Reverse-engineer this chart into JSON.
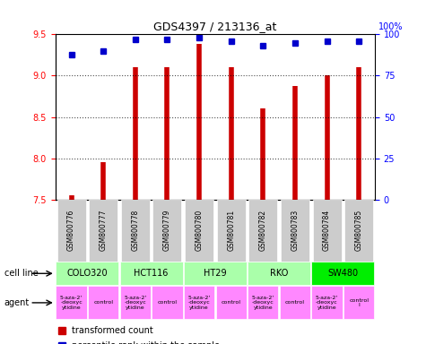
{
  "title": "GDS4397 / 213136_at",
  "samples": [
    "GSM800776",
    "GSM800777",
    "GSM800778",
    "GSM800779",
    "GSM800780",
    "GSM800781",
    "GSM800782",
    "GSM800783",
    "GSM800784",
    "GSM800785"
  ],
  "red_values": [
    7.55,
    7.95,
    9.1,
    9.1,
    9.38,
    9.1,
    8.6,
    8.88,
    9.0,
    9.1
  ],
  "blue_values": [
    88,
    90,
    97,
    97,
    98,
    96,
    93,
    95,
    96,
    96
  ],
  "ylim": [
    7.5,
    9.5
  ],
  "blue_ylim": [
    0,
    100
  ],
  "yticks_red": [
    7.5,
    8.0,
    8.5,
    9.0,
    9.5
  ],
  "yticks_blue": [
    0,
    25,
    50,
    75,
    100
  ],
  "cell_lines": [
    {
      "label": "COLO320",
      "span": [
        0,
        2
      ],
      "color": "#ccffcc"
    },
    {
      "label": "HCT116",
      "span": [
        2,
        4
      ],
      "color": "#ccffcc"
    },
    {
      "label": "HT29",
      "span": [
        4,
        6
      ],
      "color": "#ccffcc"
    },
    {
      "label": "RKO",
      "span": [
        6,
        8
      ],
      "color": "#ccffcc"
    },
    {
      "label": "SW480",
      "span": [
        8,
        10
      ],
      "color": "#00ff00"
    }
  ],
  "agents": [
    {
      "label": "5-aza-2'\n-deoxyc\nytidine",
      "span": [
        0,
        1
      ],
      "color": "#ff88ff"
    },
    {
      "label": "control",
      "span": [
        1,
        2
      ],
      "color": "#ff88ff"
    },
    {
      "label": "5-aza-2'\n-deoxyc\nytidine",
      "span": [
        2,
        3
      ],
      "color": "#ff88ff"
    },
    {
      "label": "control",
      "span": [
        3,
        4
      ],
      "color": "#ff88ff"
    },
    {
      "label": "5-aza-2'\n-deoxyc\nytidine",
      "span": [
        4,
        5
      ],
      "color": "#ff88ff"
    },
    {
      "label": "control",
      "span": [
        5,
        6
      ],
      "color": "#ff88ff"
    },
    {
      "label": "5-aza-2'\n-deoxyc\nytidine",
      "span": [
        6,
        7
      ],
      "color": "#ff88ff"
    },
    {
      "label": "control",
      "span": [
        7,
        8
      ],
      "color": "#ff88ff"
    },
    {
      "label": "5-aza-2'\n-deoxyc\nytidine",
      "span": [
        8,
        9
      ],
      "color": "#ff88ff"
    },
    {
      "label": "control\nl",
      "span": [
        9,
        10
      ],
      "color": "#ff88ff"
    }
  ],
  "bar_color": "#cc0000",
  "dot_color": "#0000cc",
  "bg_color": "#ffffff",
  "grid_color": "#000000",
  "sample_bg": "#cccccc"
}
